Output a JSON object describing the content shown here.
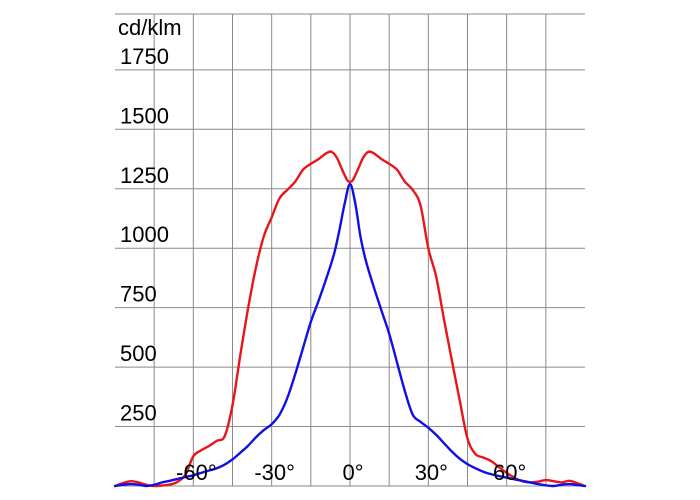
{
  "chart_data": {
    "type": "line",
    "unit_label": "cd/klm",
    "xlim": [
      -90,
      90
    ],
    "ylim": [
      0,
      1850
    ],
    "grid": true,
    "y_ticks": [
      {
        "value": 250,
        "label": "250"
      },
      {
        "value": 500,
        "label": "500"
      },
      {
        "value": 750,
        "label": "750"
      },
      {
        "value": 1000,
        "label": "1000"
      },
      {
        "value": 1250,
        "label": "1250"
      },
      {
        "value": 1500,
        "label": "1500"
      },
      {
        "value": 1750,
        "label": "1750"
      }
    ],
    "x_ticks": [
      {
        "value": -60,
        "label": "-60°"
      },
      {
        "value": -30,
        "label": "-30°"
      },
      {
        "value": 0,
        "label": "0°"
      },
      {
        "value": 30,
        "label": "30°"
      },
      {
        "value": 60,
        "label": "60°"
      }
    ],
    "series": [
      {
        "color": "#e8151b",
        "points": [
          [
            -90,
            0
          ],
          [
            -87,
            12
          ],
          [
            -84,
            20
          ],
          [
            -81,
            15
          ],
          [
            -78,
            5
          ],
          [
            -75,
            0
          ],
          [
            -72,
            2
          ],
          [
            -69,
            6
          ],
          [
            -66,
            18
          ],
          [
            -63,
            48
          ],
          [
            -60,
            125
          ],
          [
            -57,
            150
          ],
          [
            -54,
            168
          ],
          [
            -51,
            190
          ],
          [
            -48,
            210
          ],
          [
            -45,
            340
          ],
          [
            -42,
            550
          ],
          [
            -39,
            750
          ],
          [
            -36,
            920
          ],
          [
            -33,
            1050
          ],
          [
            -30,
            1130
          ],
          [
            -27,
            1210
          ],
          [
            -24,
            1245
          ],
          [
            -21,
            1280
          ],
          [
            -18,
            1330
          ],
          [
            -15,
            1355
          ],
          [
            -12,
            1375
          ],
          [
            -9,
            1400
          ],
          [
            -7,
            1405
          ],
          [
            -5,
            1380
          ],
          [
            -3,
            1330
          ],
          [
            -1,
            1285
          ],
          [
            0,
            1280
          ],
          [
            1,
            1285
          ],
          [
            3,
            1330
          ],
          [
            5,
            1380
          ],
          [
            7,
            1405
          ],
          [
            9,
            1400
          ],
          [
            12,
            1375
          ],
          [
            15,
            1355
          ],
          [
            18,
            1330
          ],
          [
            21,
            1280
          ],
          [
            24,
            1245
          ],
          [
            27,
            1180
          ],
          [
            30,
            1000
          ],
          [
            33,
            880
          ],
          [
            36,
            700
          ],
          [
            39,
            530
          ],
          [
            42,
            360
          ],
          [
            45,
            200
          ],
          [
            48,
            135
          ],
          [
            51,
            120
          ],
          [
            54,
            105
          ],
          [
            57,
            80
          ],
          [
            60,
            55
          ],
          [
            63,
            35
          ],
          [
            66,
            20
          ],
          [
            69,
            15
          ],
          [
            72,
            18
          ],
          [
            75,
            25
          ],
          [
            78,
            20
          ],
          [
            81,
            15
          ],
          [
            84,
            22
          ],
          [
            87,
            12
          ],
          [
            90,
            0
          ]
        ]
      },
      {
        "color": "#1010e6",
        "points": [
          [
            -90,
            0
          ],
          [
            -87,
            5
          ],
          [
            -84,
            8
          ],
          [
            -81,
            5
          ],
          [
            -78,
            0
          ],
          [
            -75,
            5
          ],
          [
            -72,
            15
          ],
          [
            -69,
            22
          ],
          [
            -66,
            30
          ],
          [
            -63,
            38
          ],
          [
            -60,
            45
          ],
          [
            -57,
            55
          ],
          [
            -54,
            65
          ],
          [
            -51,
            75
          ],
          [
            -48,
            90
          ],
          [
            -45,
            112
          ],
          [
            -42,
            140
          ],
          [
            -39,
            170
          ],
          [
            -36,
            205
          ],
          [
            -33,
            235
          ],
          [
            -30,
            260
          ],
          [
            -27,
            300
          ],
          [
            -24,
            370
          ],
          [
            -21,
            470
          ],
          [
            -18,
            580
          ],
          [
            -15,
            690
          ],
          [
            -12,
            780
          ],
          [
            -9,
            875
          ],
          [
            -6,
            980
          ],
          [
            -4,
            1080
          ],
          [
            -2,
            1190
          ],
          [
            0,
            1270
          ],
          [
            2,
            1190
          ],
          [
            4,
            1050
          ],
          [
            6,
            950
          ],
          [
            9,
            840
          ],
          [
            12,
            740
          ],
          [
            15,
            640
          ],
          [
            18,
            520
          ],
          [
            21,
            400
          ],
          [
            24,
            300
          ],
          [
            27,
            270
          ],
          [
            30,
            245
          ],
          [
            33,
            215
          ],
          [
            36,
            180
          ],
          [
            39,
            145
          ],
          [
            42,
            115
          ],
          [
            45,
            92
          ],
          [
            48,
            75
          ],
          [
            51,
            60
          ],
          [
            54,
            50
          ],
          [
            57,
            42
          ],
          [
            60,
            35
          ],
          [
            63,
            28
          ],
          [
            66,
            22
          ],
          [
            69,
            15
          ],
          [
            72,
            8
          ],
          [
            75,
            3
          ],
          [
            78,
            0
          ],
          [
            81,
            5
          ],
          [
            84,
            8
          ],
          [
            87,
            4
          ],
          [
            90,
            0
          ]
        ]
      }
    ]
  }
}
